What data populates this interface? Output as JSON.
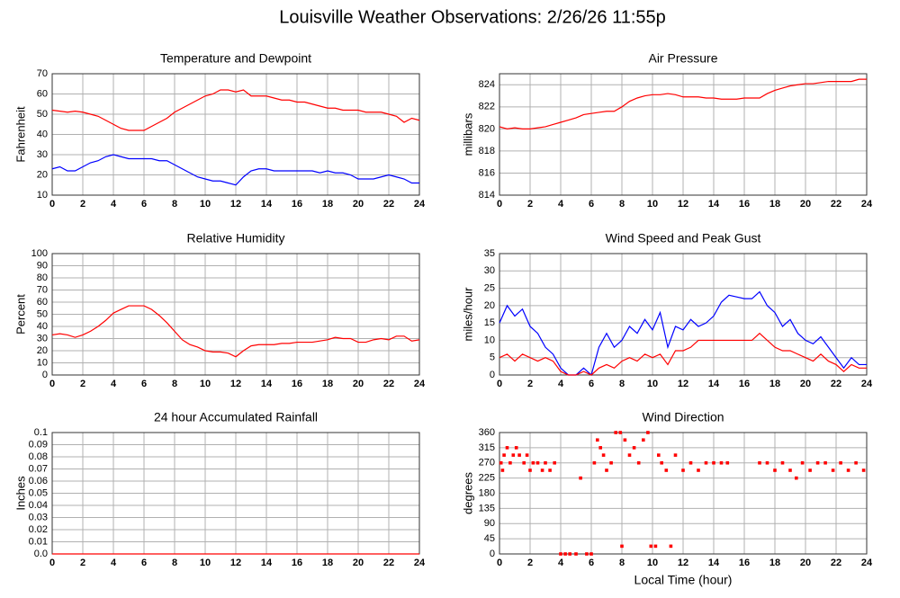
{
  "title": "Louisville Weather Observations: 2/26/26 11:55p",
  "chart_data": [
    {
      "type": "line",
      "title": "Temperature and Dewpoint",
      "ylabel": "Fahrenheit",
      "x": [
        0,
        0.5,
        1,
        1.5,
        2,
        2.5,
        3,
        3.5,
        4,
        4.5,
        5,
        5.5,
        6,
        6.5,
        7,
        7.5,
        8,
        8.5,
        9,
        9.5,
        10,
        10.5,
        11,
        11.5,
        12,
        12.5,
        13,
        13.5,
        14,
        14.5,
        15,
        15.5,
        16,
        16.5,
        17,
        17.5,
        18,
        18.5,
        19,
        19.5,
        20,
        20.5,
        21,
        21.5,
        22,
        22.5,
        23,
        23.5,
        24
      ],
      "series": [
        {
          "color": "#ff0000",
          "values": [
            52,
            51.5,
            51,
            51.5,
            51,
            50,
            49,
            47,
            45,
            43,
            42,
            42,
            42,
            44,
            46,
            48,
            51,
            53,
            55,
            57,
            59,
            60,
            62,
            62,
            61,
            62,
            59,
            59,
            59,
            58,
            57,
            57,
            56,
            56,
            55,
            54,
            53,
            53,
            52,
            52,
            52,
            51,
            51,
            51,
            50,
            49,
            46,
            48,
            47
          ]
        },
        {
          "color": "#0000ff",
          "values": [
            23,
            24,
            22,
            22,
            24,
            26,
            27,
            29,
            30,
            29,
            28,
            28,
            28,
            28,
            27,
            27,
            25,
            23,
            21,
            19,
            18,
            17,
            17,
            16,
            15,
            19,
            22,
            23,
            23,
            22,
            22,
            22,
            22,
            22,
            22,
            21,
            22,
            21,
            21,
            20,
            18,
            18,
            18,
            19,
            20,
            19,
            18,
            16,
            16
          ]
        }
      ],
      "xlim": [
        0,
        24
      ],
      "xticks": [
        0,
        2,
        4,
        6,
        8,
        10,
        12,
        14,
        16,
        18,
        20,
        22,
        24
      ],
      "ylim": [
        10,
        70
      ],
      "yticks": [
        10,
        20,
        30,
        40,
        50,
        60,
        70
      ],
      "grid": true
    },
    {
      "type": "line",
      "title": "Air Pressure",
      "ylabel": "millibars",
      "x": [
        0,
        0.5,
        1,
        1.5,
        2,
        2.5,
        3,
        3.5,
        4,
        4.5,
        5,
        5.5,
        6,
        6.5,
        7,
        7.5,
        8,
        8.5,
        9,
        9.5,
        10,
        10.5,
        11,
        11.5,
        12,
        12.5,
        13,
        13.5,
        14,
        14.5,
        15,
        15.5,
        16,
        16.5,
        17,
        17.5,
        18,
        18.5,
        19,
        19.5,
        20,
        20.5,
        21,
        21.5,
        22,
        22.5,
        23,
        23.5,
        24
      ],
      "series": [
        {
          "color": "#ff0000",
          "values": [
            820.2,
            820.0,
            820.1,
            820.0,
            820.0,
            820.1,
            820.2,
            820.4,
            820.6,
            820.8,
            821.0,
            821.3,
            821.4,
            821.5,
            821.6,
            821.6,
            822.0,
            822.5,
            822.8,
            823.0,
            823.1,
            823.1,
            823.2,
            823.1,
            822.9,
            822.9,
            822.9,
            822.8,
            822.8,
            822.7,
            822.7,
            822.7,
            822.8,
            822.8,
            822.8,
            823.2,
            823.5,
            823.7,
            823.9,
            824.0,
            824.1,
            824.1,
            824.2,
            824.3,
            824.3,
            824.3,
            824.3,
            824.5,
            824.5
          ]
        }
      ],
      "xlim": [
        0,
        24
      ],
      "xticks": [
        0,
        2,
        4,
        6,
        8,
        10,
        12,
        14,
        16,
        18,
        20,
        22,
        24
      ],
      "ylim": [
        814,
        825
      ],
      "yticks": [
        814,
        816,
        818,
        820,
        822,
        824
      ],
      "grid": true
    },
    {
      "type": "line",
      "title": "Relative Humidity",
      "ylabel": "Percent",
      "x": [
        0,
        0.5,
        1,
        1.5,
        2,
        2.5,
        3,
        3.5,
        4,
        4.5,
        5,
        5.5,
        6,
        6.5,
        7,
        7.5,
        8,
        8.5,
        9,
        9.5,
        10,
        10.5,
        11,
        11.5,
        12,
        12.5,
        13,
        13.5,
        14,
        14.5,
        15,
        15.5,
        16,
        16.5,
        17,
        17.5,
        18,
        18.5,
        19,
        19.5,
        20,
        20.5,
        21,
        21.5,
        22,
        22.5,
        23,
        23.5,
        24
      ],
      "series": [
        {
          "color": "#ff0000",
          "values": [
            33,
            34,
            33,
            31,
            33,
            36,
            40,
            45,
            51,
            54,
            57,
            57,
            57,
            54,
            49,
            43,
            36,
            29,
            25,
            23,
            20,
            19,
            19,
            18,
            15,
            20,
            24,
            25,
            25,
            25,
            26,
            26,
            27,
            27,
            27,
            28,
            29,
            31,
            30,
            30,
            27,
            27,
            29,
            30,
            29,
            32,
            32,
            28,
            29
          ]
        }
      ],
      "xlim": [
        0,
        24
      ],
      "xticks": [
        0,
        2,
        4,
        6,
        8,
        10,
        12,
        14,
        16,
        18,
        20,
        22,
        24
      ],
      "ylim": [
        0,
        100
      ],
      "yticks": [
        0,
        10,
        20,
        30,
        40,
        50,
        60,
        70,
        80,
        90,
        100
      ],
      "grid": true
    },
    {
      "type": "line",
      "title": "Wind Speed and Peak Gust",
      "ylabel": "miles/hour",
      "x": [
        0,
        0.5,
        1,
        1.5,
        2,
        2.5,
        3,
        3.5,
        4,
        4.5,
        5,
        5.5,
        6,
        6.5,
        7,
        7.5,
        8,
        8.5,
        9,
        9.5,
        10,
        10.5,
        11,
        11.5,
        12,
        12.5,
        13,
        13.5,
        14,
        14.5,
        15,
        15.5,
        16,
        16.5,
        17,
        17.5,
        18,
        18.5,
        19,
        19.5,
        20,
        20.5,
        21,
        21.5,
        22,
        22.5,
        23,
        23.5,
        24
      ],
      "series": [
        {
          "color": "#0000ff",
          "values": [
            15,
            20,
            17,
            19,
            14,
            12,
            8,
            6,
            2,
            0,
            0,
            2,
            0,
            8,
            12,
            8,
            10,
            14,
            12,
            16,
            13,
            18,
            8,
            14,
            13,
            16,
            14,
            15,
            17,
            21,
            23,
            22.5,
            22,
            22,
            24,
            20,
            18,
            14,
            16,
            12,
            10,
            9,
            11,
            8,
            5,
            2,
            5,
            3,
            3
          ]
        },
        {
          "color": "#ff0000",
          "values": [
            5,
            6,
            4,
            6,
            5,
            4,
            5,
            4,
            1,
            0,
            0,
            1,
            0,
            2,
            3,
            2,
            4,
            5,
            4,
            6,
            5,
            6,
            3,
            7,
            7,
            8,
            10,
            10,
            10,
            10,
            10,
            10,
            10,
            10,
            12,
            10,
            8,
            7,
            7,
            6,
            5,
            4,
            6,
            4,
            3,
            1,
            3,
            2,
            2
          ]
        }
      ],
      "xlim": [
        0,
        24
      ],
      "xticks": [
        0,
        2,
        4,
        6,
        8,
        10,
        12,
        14,
        16,
        18,
        20,
        22,
        24
      ],
      "ylim": [
        0,
        35
      ],
      "yticks": [
        0,
        5,
        10,
        15,
        20,
        25,
        30,
        35
      ],
      "grid": true
    },
    {
      "type": "line",
      "title": "24 hour Accumulated Rainfall",
      "ylabel": "Inches",
      "x": [
        0,
        24
      ],
      "series": [
        {
          "color": "#ff0000",
          "values": [
            0,
            0
          ]
        }
      ],
      "xlim": [
        0,
        24
      ],
      "xticks": [
        0,
        2,
        4,
        6,
        8,
        10,
        12,
        14,
        16,
        18,
        20,
        22,
        24
      ],
      "ylim": [
        0,
        0.1
      ],
      "yticks": [
        {
          "value": 0,
          "label": "0.0"
        },
        0.01,
        0.02,
        0.03,
        0.04,
        0.05,
        0.06,
        0.07,
        0.08,
        0.09,
        0.1
      ],
      "grid": true
    },
    {
      "type": "scatter",
      "title": "Wind Direction",
      "ylabel": "degrees",
      "xlabel": "Local Time (hour)",
      "x": [
        0.1,
        0.2,
        0.3,
        0.5,
        0.7,
        0.9,
        1.1,
        1.3,
        1.6,
        1.8,
        2.0,
        2.2,
        2.5,
        2.8,
        3.0,
        3.3,
        3.6,
        4.0,
        4.3,
        4.6,
        5.0,
        5.3,
        5.7,
        6.0,
        6.2,
        6.4,
        6.6,
        6.8,
        7.0,
        7.3,
        7.6,
        7.9,
        8.0,
        8.2,
        8.5,
        8.8,
        9.1,
        9.4,
        9.7,
        9.9,
        10.2,
        10.4,
        10.6,
        10.9,
        11.2,
        11.5,
        12.0,
        12.5,
        13.0,
        13.5,
        14.0,
        14.5,
        14.9,
        17.0,
        17.5,
        18.0,
        18.5,
        19.0,
        19.4,
        19.8,
        20.3,
        20.8,
        21.3,
        21.8,
        22.3,
        22.8,
        23.3,
        23.8
      ],
      "series": [
        {
          "color": "#ff0000",
          "values": [
            270,
            248,
            293,
            315,
            270,
            293,
            315,
            293,
            270,
            293,
            248,
            270,
            270,
            248,
            270,
            248,
            270,
            0,
            0,
            0,
            0,
            225,
            0,
            0,
            270,
            338,
            315,
            293,
            248,
            270,
            360,
            360,
            23,
            338,
            293,
            315,
            270,
            338,
            360,
            23,
            23,
            293,
            270,
            248,
            23,
            293,
            248,
            270,
            248,
            270,
            270,
            270,
            270,
            270,
            270,
            248,
            270,
            248,
            225,
            270,
            248,
            270,
            270,
            248,
            270,
            248,
            270,
            248
          ]
        }
      ],
      "xlim": [
        0,
        24
      ],
      "xticks": [
        0,
        2,
        4,
        6,
        8,
        10,
        12,
        14,
        16,
        18,
        20,
        22,
        24
      ],
      "ylim": [
        0,
        360
      ],
      "yticks": [
        0,
        45,
        90,
        135,
        180,
        225,
        270,
        315,
        360
      ],
      "grid": true
    }
  ]
}
